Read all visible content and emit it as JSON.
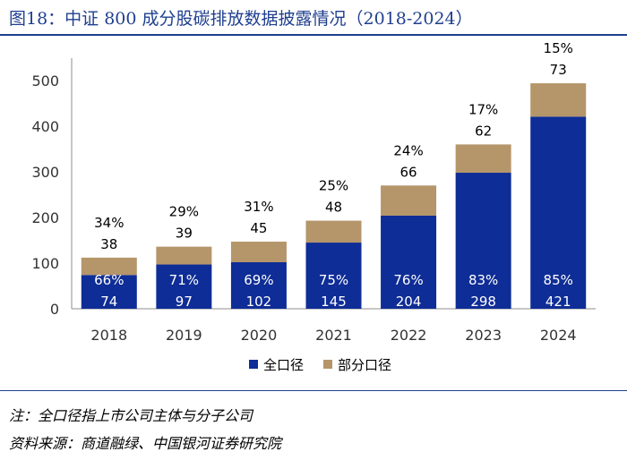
{
  "figure_title": "图18：中证 800 成分股碳排放数据披露情况（2018-2024）",
  "note": "注：全口径指上市公司主体与分子公司",
  "source": "资料来源：商道融绿、中国银河证券研究院",
  "colors": {
    "full": "#0f2d96",
    "partial": "#b5956a",
    "title": "#1f3f8f"
  },
  "chart_data": {
    "type": "bar",
    "stacked": true,
    "categories": [
      "2018",
      "2019",
      "2020",
      "2021",
      "2022",
      "2023",
      "2024"
    ],
    "series": [
      {
        "name": "全口径",
        "values": [
          74,
          97,
          102,
          145,
          204,
          298,
          421
        ],
        "percent_labels": [
          "66%",
          "71%",
          "69%",
          "75%",
          "76%",
          "83%",
          "85%"
        ]
      },
      {
        "name": "部分口径",
        "values": [
          38,
          39,
          45,
          48,
          66,
          62,
          73
        ],
        "percent_labels": [
          "34%",
          "29%",
          "31%",
          "25%",
          "24%",
          "17%",
          "15%"
        ]
      }
    ],
    "ylim": [
      0,
      500
    ],
    "yticks": [
      0,
      100,
      200,
      300,
      400,
      500
    ],
    "grid": false,
    "legend_position": "bottom"
  }
}
